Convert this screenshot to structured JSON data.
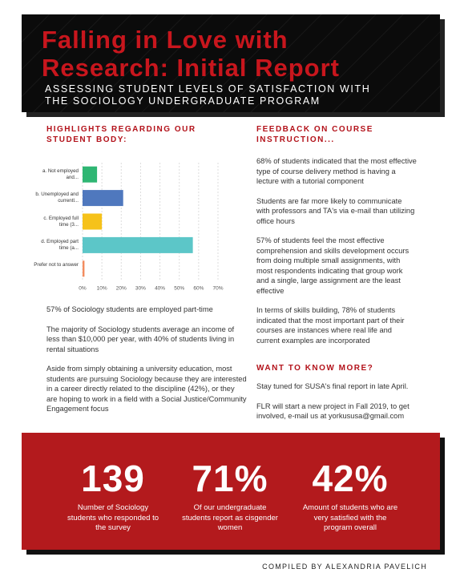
{
  "header": {
    "title": "Falling in Love with Research: Initial Report",
    "subtitle": "ASSESSING STUDENT LEVELS OF SATISFACTION WITH THE SOCIOLOGY UNDERGRADUATE PROGRAM"
  },
  "left": {
    "heading": "HIGHLIGHTS REGARDING OUR STUDENT BODY:",
    "paragraphs": [
      "57% of Sociology students are employed part-time",
      "The majority of Sociology students average an income of less than $10,000 per year, with 40% of students living in rental situations",
      "Aside from simply obtaining a university education, most students are pursuing Sociology because they are interested in a career directly related to the discipline (42%), or they are hoping to work in a field with a Social Justice/Community Engagement focus"
    ]
  },
  "chart_data": {
    "type": "hbar",
    "categories": [
      "a. Not employed and...",
      "b. Unemployed and currentl...",
      "c. Employed full time (3...",
      "d. Employed part time (a...",
      "Prefer not to answer"
    ],
    "series": [
      {
        "values": [
          7.5,
          21,
          10,
          57,
          1
        ],
        "colors": [
          "#2fb673",
          "#4f78be",
          "#f6c21a",
          "#5cc6c8",
          "#f38c5f"
        ]
      }
    ],
    "xlim": [
      0,
      70
    ],
    "xticks": [
      {
        "value": 0,
        "label": "0%"
      },
      {
        "value": 10,
        "label": "10%"
      },
      {
        "value": 20,
        "label": "20%"
      },
      {
        "value": 30,
        "label": "30%"
      },
      {
        "value": 40,
        "label": "40%"
      },
      {
        "value": 50,
        "label": "50%"
      },
      {
        "value": 60,
        "label": "60%"
      },
      {
        "value": 70,
        "label": "70%"
      }
    ],
    "grid": true
  },
  "right": {
    "sections": [
      {
        "heading": "FEEDBACK ON COURSE INSTRUCTION...",
        "paragraphs": [
          "68% of students indicated that the most effective type of course delivery method is having a lecture with a tutorial component",
          "Students are far more likely to communicate with professors and TA's via e-mail than utilizing office hours",
          "57% of students feel the most effective comprehension and skills development occurs from doing multiple small assignments, with most respondents indicating that group work and a single, large assignment are the least effective",
          "In terms of skills building, 78% of students indicated that the most important part of their courses are instances where real life and current examples are incorporated"
        ]
      },
      {
        "heading": "WANT TO KNOW MORE?",
        "paragraphs": [
          "Stay tuned for SUSA's final report in late April.",
          "FLR will start a new project in Fall 2019, to get involved, e-mail us at yorkususa@gmail.com"
        ]
      }
    ]
  },
  "stats": [
    {
      "number": "139",
      "label": "Number of Sociology students who responded to the survey"
    },
    {
      "number": "71%",
      "label": "Of our undergraduate students report as cisgender women"
    },
    {
      "number": "42%",
      "label": "Amount of students who are very satisfied with the program overall"
    }
  ],
  "footer": "COMPILED BY ALEXANDRIA PAVELICH"
}
